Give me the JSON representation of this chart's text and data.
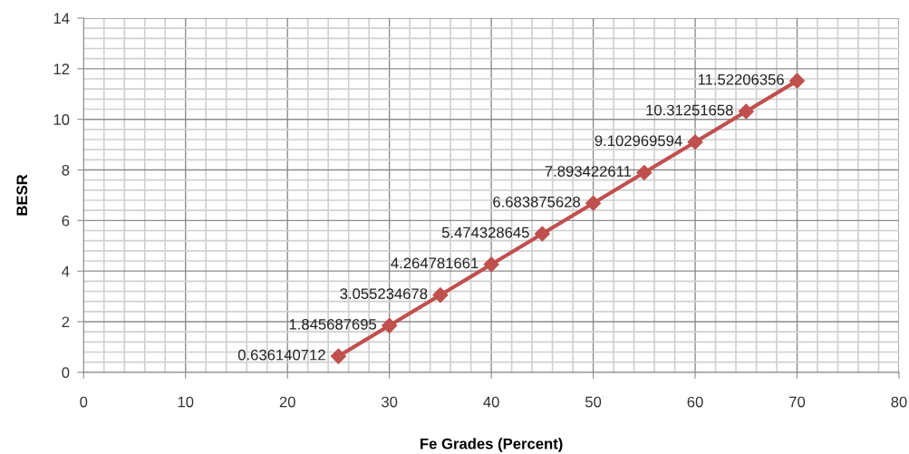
{
  "chart_data": {
    "type": "line",
    "xlabel": "Fe Grades (Percent)",
    "ylabel": "BESR",
    "x": [
      25,
      30,
      35,
      40,
      45,
      50,
      55,
      60,
      65,
      70
    ],
    "series": [
      {
        "color": "#c0504d",
        "values": [
          0.636140712,
          1.845687695,
          3.055234678,
          4.264781661,
          5.474328645,
          6.683875628,
          7.893422611,
          9.102969594,
          10.31251658,
          11.52206356
        ]
      }
    ],
    "xlim": [
      0,
      80
    ],
    "xticks": [
      0,
      10,
      20,
      30,
      40,
      50,
      60,
      70,
      80
    ],
    "ylim": [
      0,
      14
    ],
    "yticks": [
      0,
      2,
      4,
      6,
      8,
      10,
      12,
      14
    ],
    "grid": true,
    "marker": "diamond",
    "line_style": "solid",
    "data_labels": true,
    "legend": false
  }
}
